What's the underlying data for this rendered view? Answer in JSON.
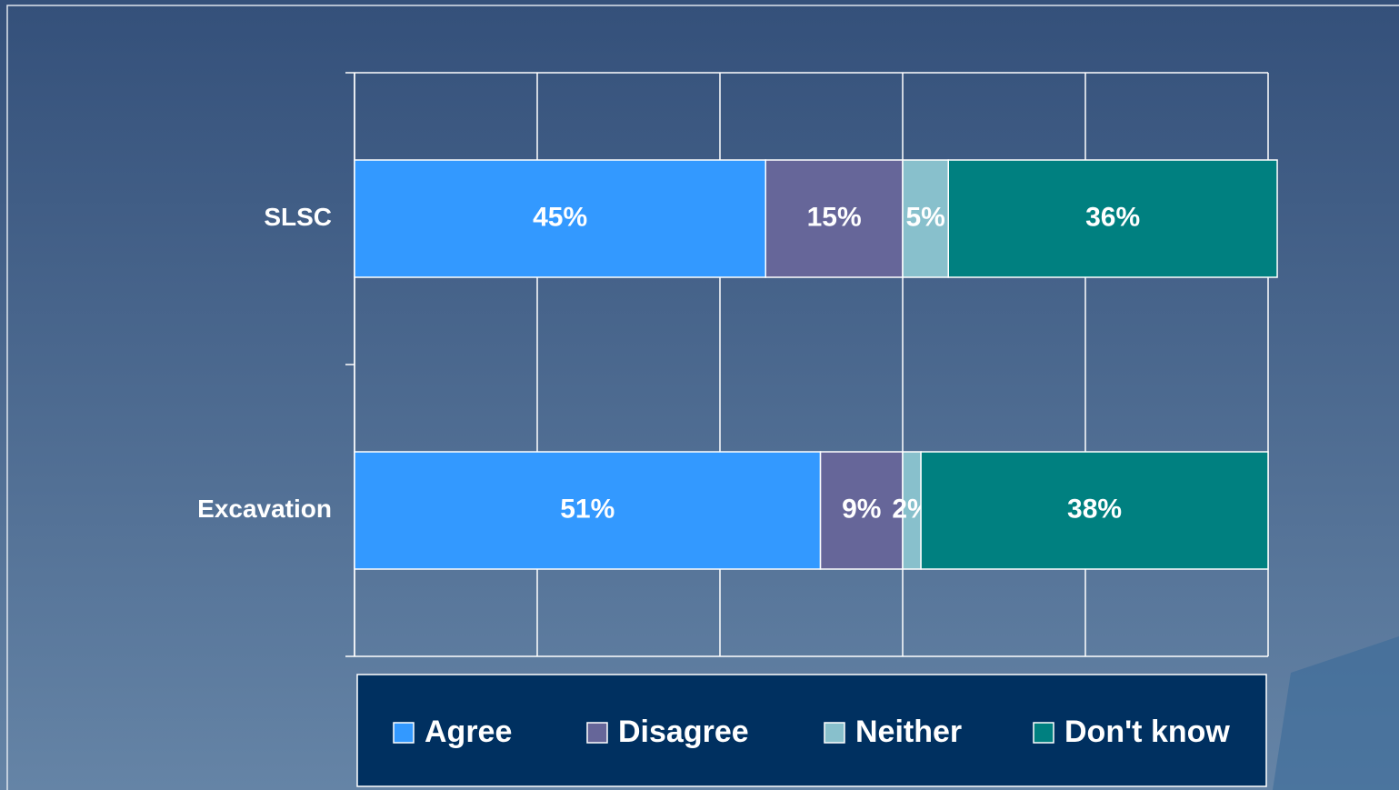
{
  "chart_data": {
    "type": "stacked-bar-horizontal",
    "categories": [
      "SLSC",
      "Excavation"
    ],
    "series": [
      {
        "name": "Agree",
        "color": "#3399ff",
        "values": [
          45,
          51
        ],
        "value_labels": [
          "45%",
          "51%"
        ]
      },
      {
        "name": "Disagree",
        "color": "#666699",
        "values": [
          15,
          9
        ],
        "value_labels": [
          "15%",
          "9%"
        ]
      },
      {
        "name": "Neither",
        "color": "#88c0cc",
        "values": [
          5,
          2
        ],
        "value_labels": [
          "5%",
          "2%"
        ]
      },
      {
        "name": "Don't know",
        "color": "#008080",
        "values": [
          36,
          38
        ],
        "value_labels": [
          "36%",
          "38%"
        ]
      }
    ],
    "xlim": [
      0,
      100
    ],
    "xticks": [
      0,
      20,
      40,
      60,
      80,
      100
    ],
    "grid": true,
    "legend": "bottom"
  }
}
